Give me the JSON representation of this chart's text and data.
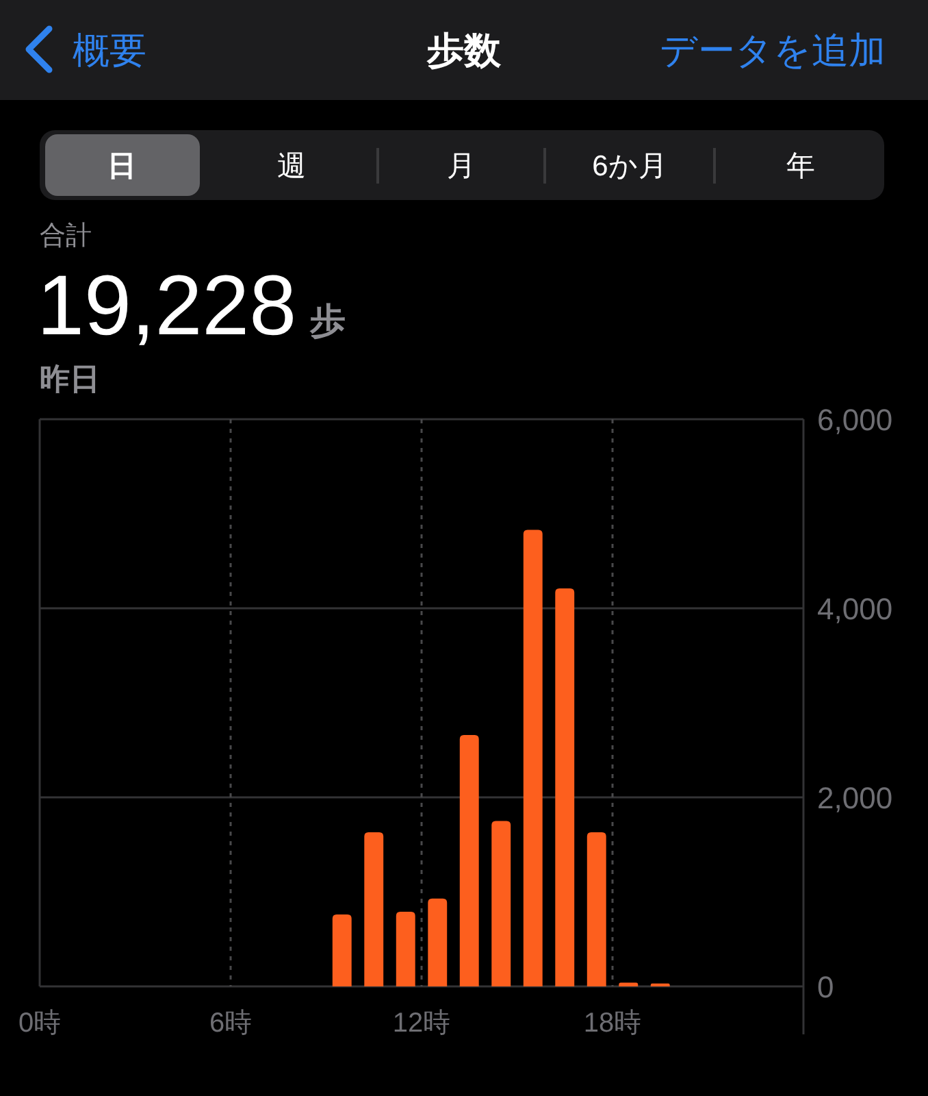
{
  "chart_data": {
    "type": "bar",
    "title": "歩数",
    "annotations": [
      "概要",
      "データを追加",
      "日",
      "週",
      "月",
      "6か月",
      "年",
      "合計",
      "19,228",
      "歩",
      "昨日"
    ],
    "x": [
      9.5,
      10.5,
      11.5,
      12.5,
      13.5,
      14.5,
      15.5,
      16.5,
      17.5,
      18.5,
      19.5
    ],
    "values": [
      760,
      1630,
      790,
      930,
      2660,
      1750,
      4830,
      4210,
      1630,
      40,
      30
    ],
    "color": "#fd5f1e",
    "xlim": [
      0,
      24
    ],
    "xticks": [
      {
        "value": 0,
        "label": "0時"
      },
      {
        "value": 6,
        "label": "6時"
      },
      {
        "value": 12,
        "label": "12時"
      },
      {
        "value": 18,
        "label": "18時"
      }
    ],
    "ylim": [
      0,
      6000
    ],
    "yticks": [
      0,
      {
        "value": 2000,
        "label": "2,000"
      },
      {
        "value": 4000,
        "label": "4,000"
      },
      {
        "value": 6000,
        "label": "6,000"
      }
    ],
    "grid": true
  }
}
